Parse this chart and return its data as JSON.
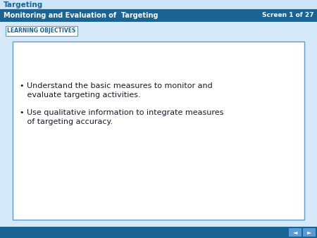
{
  "title_text": "Targeting",
  "title_bg": "#cce4f7",
  "title_color": "#1a6494",
  "subtitle_text": "Monitoring and Evaluation of  Targeting",
  "subtitle_screen": "Screen 1 of 27",
  "subtitle_bg": "#1a6494",
  "subtitle_color": "#ffffff",
  "tab_text": "LEARNING OBJECTIVES",
  "tab_border": "#5b9bd5",
  "tab_text_color": "#1a6494",
  "bg_color": "#d6e9f8",
  "box_bg": "#ffffff",
  "box_border": "#5b9bd5",
  "bullet1_line1": "• Understand the basic measures to monitor and",
  "bullet1_line2": "   evaluate targeting activities.",
  "bullet2_line1": "• Use qualitative information to integrate measures",
  "bullet2_line2": "   of targeting accuracy.",
  "text_color": "#1a1a2e",
  "footer_bg": "#1a6494",
  "nav_arrow_bg": "#5b9bd5"
}
